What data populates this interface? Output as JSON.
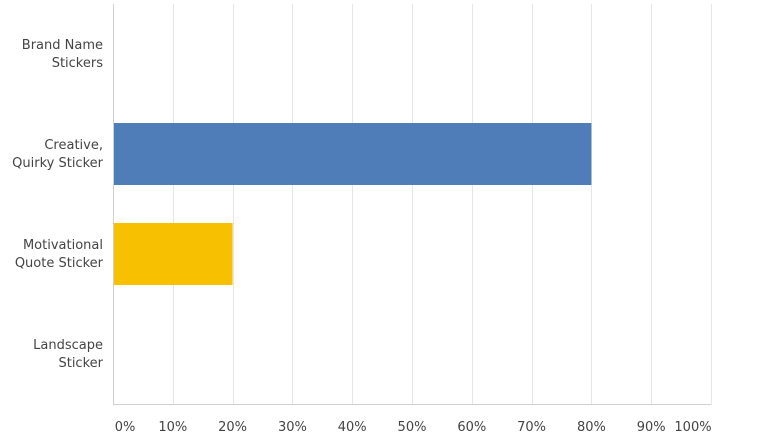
{
  "chart_data": {
    "type": "bar",
    "orientation": "horizontal",
    "categories": [
      [
        "Brand Name",
        "Stickers"
      ],
      [
        "Creative,",
        "Quirky Sticker"
      ],
      [
        "Motivational",
        "Quote Sticker"
      ],
      [
        "Landscape",
        "Sticker"
      ]
    ],
    "values": [
      0,
      80,
      20,
      0
    ],
    "colors": [
      "#4f7db7",
      "#4f7db7",
      "#f7c000",
      "#4f7db7"
    ],
    "xlim": [
      0,
      100
    ],
    "xticks": [
      0,
      10,
      20,
      30,
      40,
      50,
      60,
      70,
      80,
      90,
      100
    ],
    "xtick_labels": [
      "0%",
      "10%",
      "20%",
      "30%",
      "40%",
      "50%",
      "60%",
      "70%",
      "80%",
      "90%",
      "100%"
    ],
    "grid": "vertical",
    "title": "",
    "xlabel": "",
    "ylabel": ""
  }
}
